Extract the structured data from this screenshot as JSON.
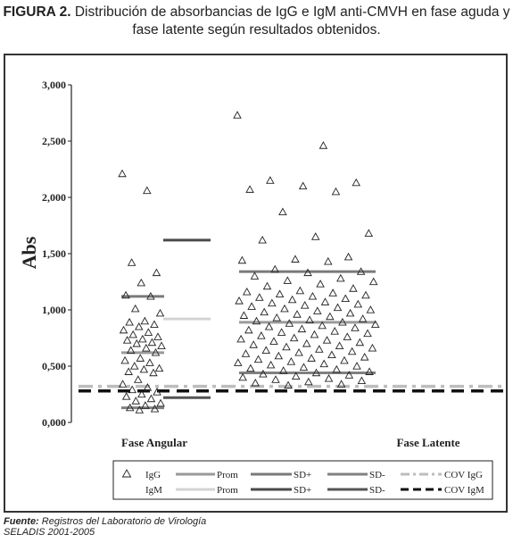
{
  "caption": {
    "figure_label": "FIGURA 2.",
    "line1": "Distribución de absorbancias de IgG e IgM anti-CMVH en fase aguda y",
    "line2": "fase latente según resultados obtenidos."
  },
  "source": {
    "label": "Fuente:",
    "text": "Registros del Laboratorio de Virología",
    "line2": "SELADIS 2001-2005"
  },
  "colors": {
    "igg_prom": "#9a9a9a",
    "igm_prom": "#d3d3d3",
    "igg_sd_plus": "#7a7a7a",
    "igm_sd_plus": "#4a4a4a",
    "igg_sd_minus": "#808080",
    "igm_sd_minus": "#555555",
    "cov_igg": "#bdbdbd",
    "cov_igm": "#111111"
  },
  "chart_data": {
    "type": "scatter",
    "ylabel": "Abs",
    "ylim": [
      0,
      3.0
    ],
    "yticks": [
      {
        "value": 0.0,
        "label": "0,000"
      },
      {
        "value": 0.5,
        "label": "0,500"
      },
      {
        "value": 1.0,
        "label": "1,000"
      },
      {
        "value": 1.5,
        "label": "1,500"
      },
      {
        "value": 2.0,
        "label": "2,000"
      },
      {
        "value": 2.5,
        "label": "2,500"
      },
      {
        "value": 3.0,
        "label": "3,000"
      }
    ],
    "categories": [
      "Fase Angular",
      "Fase Latente"
    ],
    "series": [
      {
        "name": "IgG",
        "marker": "triangle",
        "groups": [
          {
            "category": "Fase Angular",
            "values": [
              2.21,
              2.06,
              1.42,
              1.33,
              1.24,
              1.13,
              1.12,
              1.01,
              0.97,
              0.9,
              0.89,
              0.87,
              0.85,
              0.82,
              0.8,
              0.78,
              0.76,
              0.74,
              0.73,
              0.71,
              0.7,
              0.68,
              0.66,
              0.64,
              0.62,
              0.57,
              0.55,
              0.53,
              0.5,
              0.48,
              0.47,
              0.45,
              0.44,
              0.38,
              0.34,
              0.31,
              0.29,
              0.27,
              0.25,
              0.23,
              0.21,
              0.19,
              0.17,
              0.15,
              0.13,
              0.12,
              0.11
            ]
          },
          {
            "category": "Fase Latente",
            "values": [
              2.73,
              2.46,
              2.15,
              2.13,
              2.1,
              2.07,
              2.05,
              1.87,
              1.68,
              1.65,
              1.62,
              1.47,
              1.45,
              1.44,
              1.43,
              1.36,
              1.34,
              1.33,
              1.3,
              1.28,
              1.26,
              1.25,
              1.23,
              1.21,
              1.19,
              1.17,
              1.16,
              1.15,
              1.14,
              1.13,
              1.12,
              1.11,
              1.1,
              1.09,
              1.08,
              1.07,
              1.06,
              1.05,
              1.04,
              1.03,
              1.02,
              1.01,
              1.0,
              0.99,
              0.98,
              0.97,
              0.96,
              0.95,
              0.94,
              0.93,
              0.92,
              0.91,
              0.9,
              0.89,
              0.88,
              0.87,
              0.86,
              0.85,
              0.84,
              0.83,
              0.82,
              0.81,
              0.8,
              0.79,
              0.78,
              0.77,
              0.76,
              0.75,
              0.74,
              0.73,
              0.72,
              0.71,
              0.7,
              0.69,
              0.68,
              0.67,
              0.66,
              0.65,
              0.64,
              0.63,
              0.62,
              0.61,
              0.6,
              0.59,
              0.58,
              0.57,
              0.56,
              0.55,
              0.54,
              0.53,
              0.52,
              0.51,
              0.5,
              0.49,
              0.48,
              0.47,
              0.46,
              0.45,
              0.44,
              0.43,
              0.42,
              0.41,
              0.4,
              0.39,
              0.38,
              0.37,
              0.36,
              0.35,
              0.34,
              0.33
            ]
          }
        ]
      },
      {
        "name": "IgM",
        "marker": "none",
        "groups": []
      }
    ],
    "reference_lines": [
      {
        "name": "Prom",
        "series": "IgG",
        "category": "Fase Angular",
        "value": 0.62,
        "style": "solid"
      },
      {
        "name": "SD+",
        "series": "IgG",
        "category": "Fase Angular",
        "value": 1.12,
        "style": "solid"
      },
      {
        "name": "SD-",
        "series": "IgG",
        "category": "Fase Angular",
        "value": 0.13,
        "style": "solid"
      },
      {
        "name": "Prom",
        "series": "IgM",
        "category": "Fase Angular",
        "value": 0.92,
        "style": "solid"
      },
      {
        "name": "SD+",
        "series": "IgM",
        "category": "Fase Angular",
        "value": 1.62,
        "style": "solid"
      },
      {
        "name": "SD-",
        "series": "IgM",
        "category": "Fase Angular",
        "value": 0.22,
        "style": "solid"
      },
      {
        "name": "Prom",
        "series": "IgG",
        "category": "Fase Latente",
        "value": 0.89,
        "style": "solid"
      },
      {
        "name": "SD+",
        "series": "IgG",
        "category": "Fase Latente",
        "value": 1.34,
        "style": "solid"
      },
      {
        "name": "SD-",
        "series": "IgG",
        "category": "Fase Latente",
        "value": 0.44,
        "style": "solid"
      },
      {
        "name": "COV IgG",
        "series": "IgG",
        "value": 0.32,
        "style": "dash-dot"
      },
      {
        "name": "COV IgM",
        "series": "IgM",
        "value": 0.28,
        "style": "dashed"
      }
    ],
    "legend": {
      "placement": "bottom",
      "rows": [
        {
          "series": "IgG",
          "items": [
            "IgG",
            "Prom",
            "SD+",
            "SD-",
            "COV IgG"
          ]
        },
        {
          "series": "IgM",
          "items": [
            "IgM",
            "Prom",
            "SD+",
            "SD-",
            "COV IgM"
          ]
        }
      ]
    }
  }
}
